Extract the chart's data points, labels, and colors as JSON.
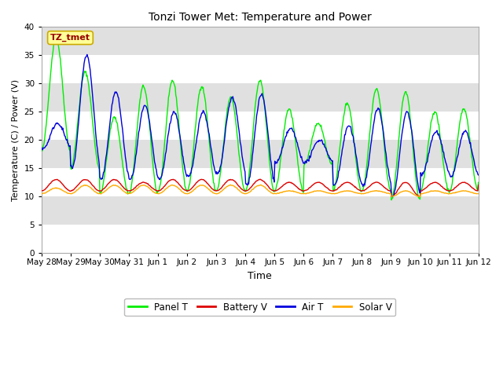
{
  "title": "Tonzi Tower Met: Temperature and Power",
  "xlabel": "Time",
  "ylabel": "Temperature (C) / Power (V)",
  "ylim": [
    0,
    40
  ],
  "yticks": [
    0,
    5,
    10,
    15,
    20,
    25,
    30,
    35,
    40
  ],
  "fig_bg_color": "#ffffff",
  "plot_bg_color": "#e8e8e8",
  "band_colors": [
    "#ffffff",
    "#e0e0e0"
  ],
  "legend_labels": [
    "Panel T",
    "Battery V",
    "Air T",
    "Solar V"
  ],
  "legend_colors": [
    "#00ee00",
    "#dd0000",
    "#0000dd",
    "#ffaa00"
  ],
  "watermark_text": "TZ_tmet",
  "watermark_fg": "#990000",
  "watermark_bg": "#ffff99",
  "watermark_border": "#ccaa00",
  "n_days": 15,
  "tick_labels": [
    "May 28",
    "May 29",
    "May 30",
    "May 31",
    "Jun 1",
    "Jun 2",
    "Jun 3",
    "Jun 4",
    "Jun 5",
    "Jun 6",
    "Jun 7",
    "Jun 8",
    "Jun 9",
    "Jun 10",
    "Jun 11",
    "Jun 12"
  ],
  "panel_t_peaks": [
    38.0,
    32.0,
    24.0,
    29.5,
    30.5,
    29.5,
    27.5,
    30.5,
    25.5,
    23.0,
    26.5,
    29.0,
    28.5,
    25.0,
    25.5,
    25.5
  ],
  "panel_t_troughs": [
    18.0,
    15.0,
    10.5,
    10.5,
    11.0,
    11.0,
    11.0,
    11.0,
    11.0,
    15.5,
    11.0,
    11.0,
    9.3,
    11.0,
    11.0,
    12.5
  ],
  "air_t_peaks": [
    23.0,
    35.0,
    28.5,
    26.0,
    25.0,
    25.0,
    27.5,
    28.0,
    22.0,
    20.0,
    22.5,
    25.5,
    25.0,
    21.5,
    21.5,
    21.5
  ],
  "air_t_troughs": [
    18.5,
    15.0,
    13.0,
    13.0,
    13.0,
    13.5,
    14.0,
    12.0,
    16.0,
    16.0,
    12.0,
    12.0,
    10.0,
    14.0,
    13.5,
    13.5
  ],
  "battery_peaks": [
    13.0,
    13.0,
    13.0,
    12.5,
    13.0,
    13.0,
    13.0,
    13.0,
    12.5,
    12.5,
    12.5,
    12.5,
    12.5,
    12.5,
    12.5,
    12.5
  ],
  "battery_troughs": [
    11.0,
    11.0,
    11.0,
    11.0,
    11.0,
    11.0,
    11.0,
    11.0,
    11.0,
    11.0,
    11.0,
    11.0,
    10.0,
    11.0,
    11.0,
    12.0
  ],
  "solar_peaks": [
    11.5,
    12.0,
    12.0,
    12.0,
    12.0,
    12.0,
    12.0,
    12.0,
    11.0,
    11.0,
    11.0,
    11.0,
    11.0,
    11.0,
    11.0,
    11.0
  ],
  "solar_troughs": [
    10.5,
    10.5,
    10.5,
    10.5,
    10.5,
    10.5,
    10.5,
    10.5,
    10.5,
    10.5,
    10.5,
    10.5,
    10.0,
    10.5,
    10.5,
    10.5
  ]
}
